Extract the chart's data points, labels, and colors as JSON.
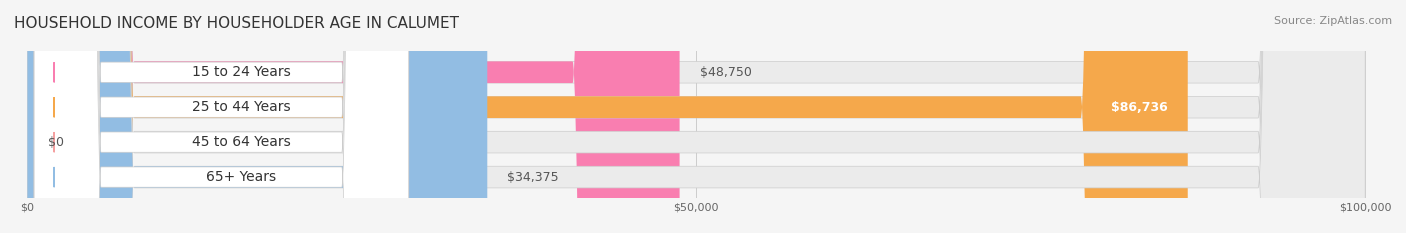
{
  "title": "HOUSEHOLD INCOME BY HOUSEHOLDER AGE IN CALUMET",
  "source": "Source: ZipAtlas.com",
  "categories": [
    "15 to 24 Years",
    "25 to 44 Years",
    "45 to 64 Years",
    "65+ Years"
  ],
  "values": [
    48750,
    86736,
    0,
    34375
  ],
  "bar_colors": [
    "#f97eb0",
    "#f5a84b",
    "#f5a0a0",
    "#92bde3"
  ],
  "bar_bg_color": "#e8e8e8",
  "label_colors": [
    "#555555",
    "#ffffff",
    "#555555",
    "#555555"
  ],
  "value_labels": [
    "$48,750",
    "$86,736",
    "$0",
    "$34,375"
  ],
  "xmax": 100000,
  "xticks": [
    0,
    50000,
    100000
  ],
  "xticklabels": [
    "$0",
    "$50,000",
    "$100,000"
  ],
  "background_color": "#f5f5f5",
  "bar_bg": "#e0e0e0",
  "title_fontsize": 11,
  "source_fontsize": 8,
  "label_fontsize": 10,
  "value_fontsize": 9
}
